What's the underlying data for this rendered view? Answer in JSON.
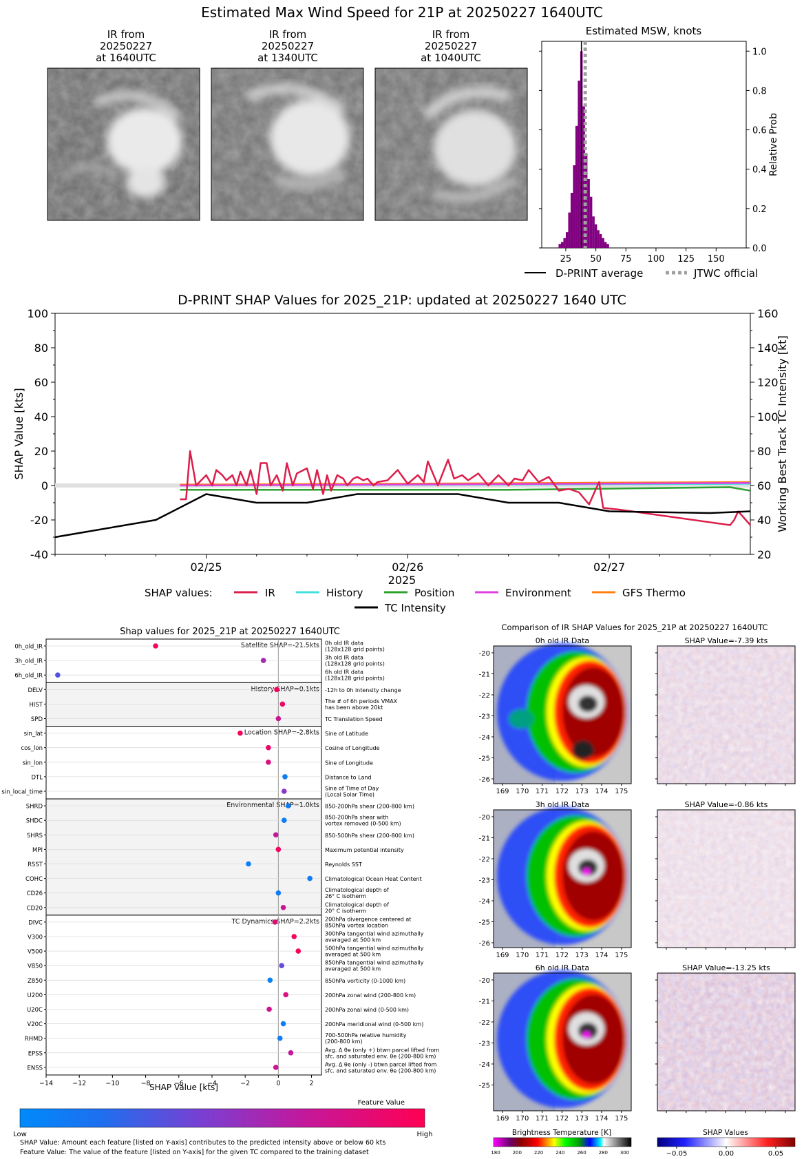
{
  "main_title": "Estimated Max Wind Speed for 21P at 20250227 1640UTC",
  "ir_panels": [
    {
      "line1": "IR from",
      "line2": "20250227",
      "line3": "at 1640UTC"
    },
    {
      "line1": "IR from",
      "line2": "20250227",
      "line3": "at 1340UTC"
    },
    {
      "line1": "IR from",
      "line2": "20250227",
      "line3": "at 1040UTC"
    }
  ],
  "legends": {
    "msw_avg": "D-PRINT average",
    "msw_jtwc": "JTWC official",
    "shap_values_label": "SHAP values:",
    "ir": "IR",
    "history": "History",
    "position": "Position",
    "environment": "Environment",
    "gfs": "GFS Thermo",
    "tc": "TC Intensity"
  },
  "colors": {
    "ir": "#dc1e4b",
    "history": "#40e0e0",
    "position": "#2ca02c",
    "environment": "#e040e0",
    "gfs": "#ff7f0e",
    "tc": "#000000",
    "hist_bar": "#800080",
    "jtwc": "#a0a0a0"
  },
  "bottom_left": {
    "title": "Shap values for 2025_21P at 20250227 1640UTC",
    "xlabel": "SHAP Value [kts]",
    "colorbar_title": "Feature Value",
    "colorbar_low": "Low",
    "colorbar_high": "High",
    "footnote1": "SHAP Value: Amount each feature [listed on Y-axis] contributes to the predicted intensity above or below 60 kts",
    "footnote2": "Feature Value: The value of the feature [listed on Y-axis] for the given TC compared to the training dataset",
    "groups": [
      {
        "label": "Satellite SHAP=-21.5kts"
      },
      {
        "label": "History SHAP=0.1kts"
      },
      {
        "label": "Location SHAP=-2.8kts"
      },
      {
        "label": "Environmental SHAP=1.0kts"
      },
      {
        "label": "TC Dynamics SHAP=2.2kts"
      }
    ],
    "features": [
      {
        "name": "0h_old_IR",
        "desc": [
          "0h old IR data",
          "(128x128 grid points)"
        ]
      },
      {
        "name": "3h_old_IR",
        "desc": [
          "3h old IR data",
          "(128x128 grid points)"
        ]
      },
      {
        "name": "6h_old_IR",
        "desc": [
          "6h old IR data",
          "(128x128 grid points)"
        ]
      },
      {
        "name": "DELV",
        "desc": [
          "-12h to 0h intensity change"
        ]
      },
      {
        "name": "HIST",
        "desc": [
          "The # of 6h periods VMAX",
          "has been above 20kt"
        ]
      },
      {
        "name": "SPD",
        "desc": [
          "TC Translation Speed"
        ]
      },
      {
        "name": "sin_lat",
        "desc": [
          "Sine of Latitude"
        ]
      },
      {
        "name": "cos_lon",
        "desc": [
          "Cosine of Longitude"
        ]
      },
      {
        "name": "sin_lon",
        "desc": [
          "Sine of Longitude"
        ]
      },
      {
        "name": "DTL",
        "desc": [
          "Distance to Land"
        ]
      },
      {
        "name": "sin_local_time",
        "desc": [
          "Sine of Time of Day",
          "(Local Solar Time)"
        ]
      },
      {
        "name": "SHRD",
        "desc": [
          "850-200hPa shear (200-800 km)"
        ]
      },
      {
        "name": "SHDC",
        "desc": [
          "850-200hPa shear with",
          "vortex removed (0-500 km)"
        ]
      },
      {
        "name": "SHRS",
        "desc": [
          "850-500hPa shear (200-800 km)"
        ]
      },
      {
        "name": "MPI",
        "desc": [
          "Maximum potential intensity"
        ]
      },
      {
        "name": "RSST",
        "desc": [
          "Reynolds SST"
        ]
      },
      {
        "name": "COHC",
        "desc": [
          "Climatological Ocean Heat Content"
        ]
      },
      {
        "name": "CD26",
        "desc": [
          "Climatological depth of",
          "26° C isotherm"
        ]
      },
      {
        "name": "CD20",
        "desc": [
          "Climatological depth of",
          "20° C isotherm"
        ]
      },
      {
        "name": "DIVC",
        "desc": [
          "200hPa divergence centered at",
          "850hPa vortex location"
        ]
      },
      {
        "name": "V300",
        "desc": [
          "300hPa tangential wind azimuthally",
          "averaged at 500 km"
        ]
      },
      {
        "name": "V500",
        "desc": [
          "500hPa tangential wind azimuthally",
          "averaged at 500 km"
        ]
      },
      {
        "name": "V850",
        "desc": [
          "850hPa tangential wind azimuthally",
          "averaged at 500 km"
        ]
      },
      {
        "name": "Z850",
        "desc": [
          "850hPa vorticity (0-1000 km)"
        ]
      },
      {
        "name": "U200",
        "desc": [
          "200hPa zonal wind (200-800 km)"
        ]
      },
      {
        "name": "U20C",
        "desc": [
          "200hPa zonal wind (0-500 km)"
        ]
      },
      {
        "name": "V20C",
        "desc": [
          "200hPa meridional wind (0-500 km)"
        ]
      },
      {
        "name": "RHMD",
        "desc": [
          "700-500hPa relative humidity",
          "(200-800 km)"
        ]
      },
      {
        "name": "EPSS",
        "desc": [
          "Avg. Δ θe (only +) btwn parcel lifted from",
          "sfc. and saturated env. θe (200-800 km)"
        ]
      },
      {
        "name": "ENSS",
        "desc": [
          "Avg. Δ θe (only -) btwn parcel lifted from",
          "sfc. and saturated env. θe (200-800 km)"
        ]
      }
    ]
  },
  "bottom_right": {
    "title": "Comparison of IR SHAP Values for 2025_21P at 20250227 1640UTC",
    "rows": [
      {
        "left_title": "0h old IR Data",
        "right_title": "SHAP Value=-7.39 kts"
      },
      {
        "left_title": "3h old IR Data",
        "right_title": "SHAP Value=-0.86 kts"
      },
      {
        "left_title": "6h old IR Data",
        "right_title": "SHAP Value=-13.25 kts"
      }
    ],
    "lat_ticks": [
      [
        "-20",
        "-21",
        "-22",
        "-23",
        "-24",
        "-25",
        "-26"
      ],
      [
        "-20",
        "-21",
        "-22",
        "-23",
        "-24",
        "-25",
        "-26"
      ],
      [
        "-20",
        "-21",
        "-22",
        "-23",
        "-24",
        "-25"
      ]
    ],
    "lon_ticks": [
      "169",
      "170",
      "171",
      "172",
      "173",
      "174",
      "175"
    ],
    "bt_label": "Brightness Temperature [K]",
    "bt_ticks": [
      "180",
      "200",
      "220",
      "240",
      "260",
      "280",
      "300"
    ],
    "shap_label": "SHAP Values",
    "shap_ticks": [
      "−0.05",
      "0.00",
      "0.05"
    ]
  },
  "chart_data": [
    {
      "type": "bar",
      "title": "Estimated MSW, knots",
      "ylabel": "Relative Prob",
      "xlim": [
        5,
        175
      ],
      "ylim": [
        0,
        1.05
      ],
      "x_ticks": [
        "25",
        "50",
        "75",
        "100",
        "125",
        "150"
      ],
      "y_ticks": [
        "0.0",
        "0.2",
        "0.4",
        "0.6",
        "0.8",
        "1.0"
      ],
      "bin_width": 2,
      "bins": [
        [
          20,
          0.02
        ],
        [
          22,
          0.03
        ],
        [
          24,
          0.05
        ],
        [
          26,
          0.08
        ],
        [
          28,
          0.18
        ],
        [
          30,
          0.28
        ],
        [
          32,
          0.42
        ],
        [
          34,
          0.62
        ],
        [
          36,
          0.85
        ],
        [
          38,
          1.0
        ],
        [
          40,
          0.72
        ],
        [
          42,
          0.48
        ],
        [
          44,
          0.35
        ],
        [
          46,
          0.26
        ],
        [
          48,
          0.16
        ],
        [
          50,
          0.12
        ],
        [
          52,
          0.09
        ],
        [
          54,
          0.07
        ],
        [
          56,
          0.05
        ],
        [
          58,
          0.03
        ],
        [
          60,
          0.02
        ]
      ],
      "dprint_average": 38,
      "jtwc_official": 40
    },
    {
      "type": "line",
      "title": "D-PRINT SHAP Values for 2025_21P: updated at 20250227 1640 UTC",
      "xlabel": "2025",
      "ylabel": "SHAP Value [kts]",
      "y2label": "Working Best Track TC Intensity [kt]",
      "ylim": [
        -40,
        100
      ],
      "y2lim": [
        20,
        160
      ],
      "xlim": [
        -0.75,
        2.7
      ],
      "x_ticks": [
        "02/25",
        "02/26",
        "02/27"
      ],
      "y_ticks": [
        "-40",
        "-20",
        "0",
        "20",
        "40",
        "60",
        "80",
        "100"
      ],
      "y2_ticks": [
        "20",
        "40",
        "60",
        "80",
        "100",
        "120",
        "140",
        "160"
      ],
      "tc_intensity": [
        [
          -0.75,
          30
        ],
        [
          -0.25,
          40
        ],
        [
          0,
          55
        ],
        [
          0.25,
          50
        ],
        [
          0.5,
          50
        ],
        [
          0.75,
          55
        ],
        [
          1.25,
          55
        ],
        [
          1.5,
          50
        ],
        [
          1.75,
          50
        ],
        [
          2,
          45
        ],
        [
          2.5,
          44
        ],
        [
          2.7,
          45
        ]
      ],
      "ir": [
        [
          -0.13,
          -8
        ],
        [
          -0.1,
          -8
        ],
        [
          -0.08,
          20
        ],
        [
          -0.05,
          0
        ],
        [
          0,
          6
        ],
        [
          0.03,
          0
        ],
        [
          0.05,
          9
        ],
        [
          0.08,
          6
        ],
        [
          0.1,
          3
        ],
        [
          0.13,
          6
        ],
        [
          0.15,
          0
        ],
        [
          0.17,
          8
        ],
        [
          0.2,
          0
        ],
        [
          0.22,
          9
        ],
        [
          0.25,
          -5
        ],
        [
          0.27,
          13
        ],
        [
          0.3,
          13
        ],
        [
          0.32,
          0
        ],
        [
          0.35,
          6
        ],
        [
          0.38,
          -3
        ],
        [
          0.4,
          13
        ],
        [
          0.43,
          0
        ],
        [
          0.45,
          7
        ],
        [
          0.5,
          10
        ],
        [
          0.53,
          -2
        ],
        [
          0.55,
          9
        ],
        [
          0.58,
          -5
        ],
        [
          0.6,
          6
        ],
        [
          0.62,
          -3
        ],
        [
          0.65,
          6
        ],
        [
          0.68,
          4
        ],
        [
          0.7,
          0
        ],
        [
          0.73,
          4
        ],
        [
          0.75,
          5
        ],
        [
          0.78,
          3
        ],
        [
          0.8,
          4
        ],
        [
          0.83,
          0
        ],
        [
          0.85,
          2
        ],
        [
          0.9,
          3
        ],
        [
          0.95,
          9
        ],
        [
          1,
          1
        ],
        [
          1.05,
          6
        ],
        [
          1.08,
          2
        ],
        [
          1.1,
          14
        ],
        [
          1.15,
          0
        ],
        [
          1.2,
          15
        ],
        [
          1.23,
          4
        ],
        [
          1.27,
          6
        ],
        [
          1.3,
          3
        ],
        [
          1.35,
          7
        ],
        [
          1.4,
          0
        ],
        [
          1.45,
          6
        ],
        [
          1.5,
          0
        ],
        [
          1.53,
          4
        ],
        [
          1.57,
          3
        ],
        [
          1.6,
          9
        ],
        [
          1.65,
          2
        ],
        [
          1.7,
          5
        ],
        [
          1.75,
          -3
        ],
        [
          1.8,
          -2
        ],
        [
          1.85,
          -4
        ],
        [
          1.9,
          -11
        ],
        [
          1.93,
          -3
        ],
        [
          1.95,
          2
        ],
        [
          1.97,
          -13
        ],
        [
          2.05,
          -14
        ],
        [
          2.6,
          -23
        ],
        [
          2.62,
          -20
        ],
        [
          2.64,
          -15
        ],
        [
          2.7,
          -23
        ]
      ],
      "history": [
        [
          -0.13,
          0
        ],
        [
          2.7,
          1
        ]
      ],
      "position": [
        [
          -0.13,
          -2.5
        ],
        [
          1.5,
          -2.5
        ],
        [
          2.6,
          -1
        ],
        [
          2.7,
          -3
        ]
      ],
      "environment": [
        [
          -0.13,
          0
        ],
        [
          2.7,
          1.5
        ]
      ],
      "gfs_thermo": [
        [
          -0.13,
          0.5
        ],
        [
          2.7,
          2
        ]
      ]
    },
    {
      "type": "scatter",
      "title": "Shap values for 2025_21P at 20250227 1640UTC",
      "xlabel": "SHAP Value [kts]",
      "xlim": [
        -14,
        2.6
      ],
      "x_ticks": [
        "−14",
        "−12",
        "−10",
        "−8",
        "−6",
        "−4",
        "−2",
        "0",
        "2"
      ],
      "points": [
        {
          "feature": "0h_old_IR",
          "shap": -7.4,
          "feature_value": 0.95
        },
        {
          "feature": "3h_old_IR",
          "shap": -0.9,
          "feature_value": 0.6
        },
        {
          "feature": "6h_old_IR",
          "shap": -13.3,
          "feature_value": 0.35
        },
        {
          "feature": "DELV",
          "shap": -0.1,
          "feature_value": 0.95
        },
        {
          "feature": "HIST",
          "shap": 0.25,
          "feature_value": 0.9
        },
        {
          "feature": "SPD",
          "shap": 0.0,
          "feature_value": 0.75
        },
        {
          "feature": "sin_lat",
          "shap": -2.3,
          "feature_value": 0.95
        },
        {
          "feature": "cos_lon",
          "shap": -0.6,
          "feature_value": 0.9
        },
        {
          "feature": "sin_lon",
          "shap": -0.6,
          "feature_value": 0.8
        },
        {
          "feature": "DTL",
          "shap": 0.4,
          "feature_value": 0.1
        },
        {
          "feature": "sin_local_time",
          "shap": 0.35,
          "feature_value": 0.5
        },
        {
          "feature": "SHRD",
          "shap": 0.6,
          "feature_value": 0.1
        },
        {
          "feature": "SHDC",
          "shap": 0.35,
          "feature_value": 0.1
        },
        {
          "feature": "SHRS",
          "shap": -0.15,
          "feature_value": 0.7
        },
        {
          "feature": "MPI",
          "shap": 0.0,
          "feature_value": 0.95
        },
        {
          "feature": "RSST",
          "shap": -1.8,
          "feature_value": 0.1
        },
        {
          "feature": "COHC",
          "shap": 1.9,
          "feature_value": 0.1
        },
        {
          "feature": "CD26",
          "shap": 0.0,
          "feature_value": 0.1
        },
        {
          "feature": "CD20",
          "shap": 0.3,
          "feature_value": 0.75
        },
        {
          "feature": "DIVC",
          "shap": -0.2,
          "feature_value": 0.85
        },
        {
          "feature": "V300",
          "shap": 0.95,
          "feature_value": 0.95
        },
        {
          "feature": "V500",
          "shap": 1.2,
          "feature_value": 0.98
        },
        {
          "feature": "V850",
          "shap": 0.2,
          "feature_value": 0.4
        },
        {
          "feature": "Z850",
          "shap": -0.5,
          "feature_value": 0.05
        },
        {
          "feature": "U200",
          "shap": 0.45,
          "feature_value": 0.8
        },
        {
          "feature": "U20C",
          "shap": -0.55,
          "feature_value": 0.75
        },
        {
          "feature": "V20C",
          "shap": 0.3,
          "feature_value": 0.1
        },
        {
          "feature": "RHMD",
          "shap": 0.1,
          "feature_value": 0.1
        },
        {
          "feature": "EPSS",
          "shap": 0.75,
          "feature_value": 0.7
        },
        {
          "feature": "ENSS",
          "shap": -0.15,
          "feature_value": 0.75
        }
      ]
    }
  ]
}
